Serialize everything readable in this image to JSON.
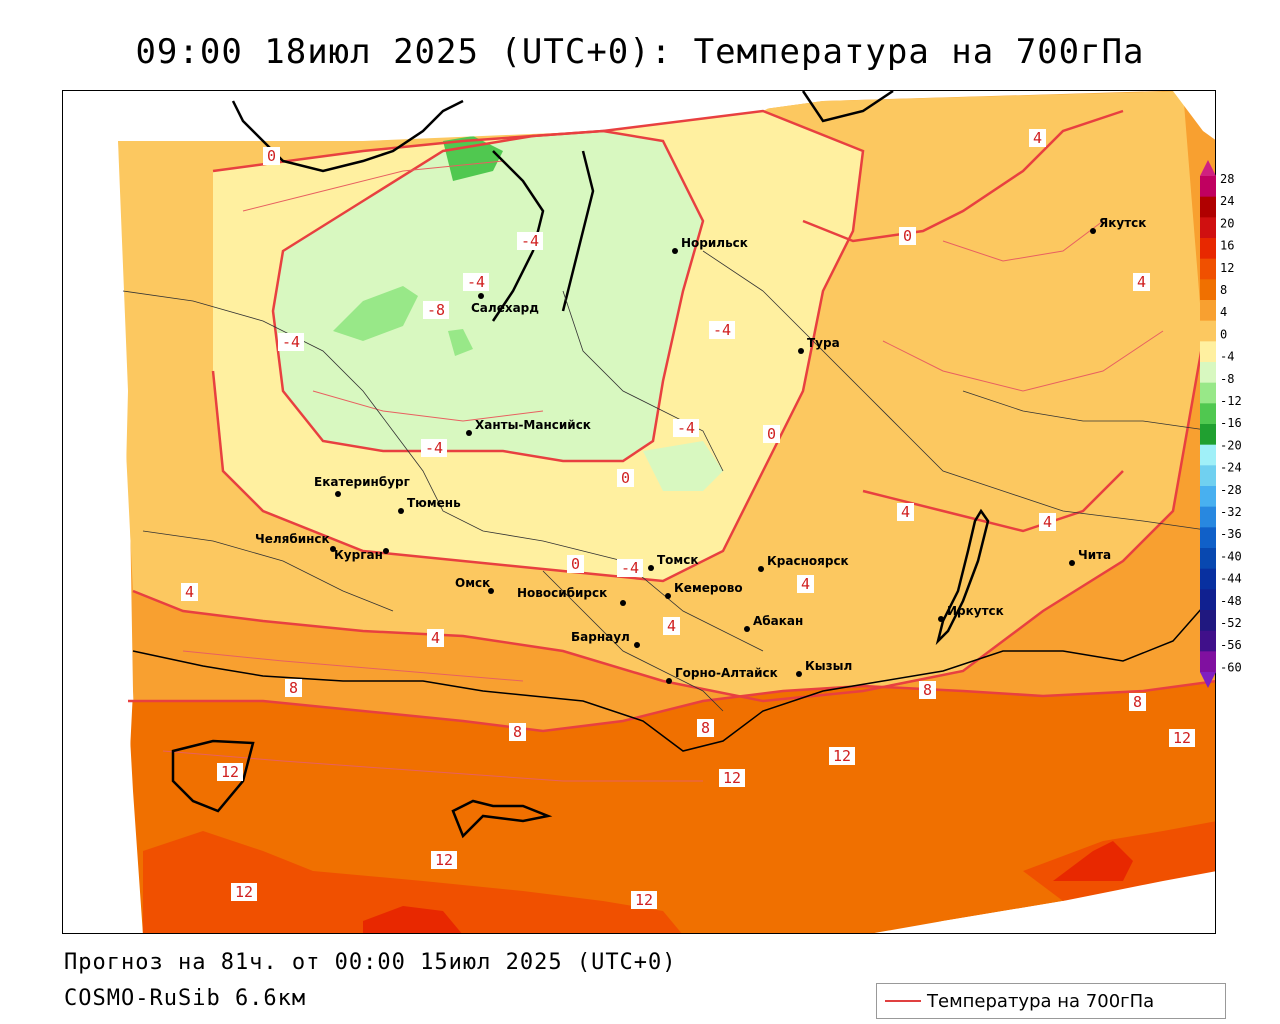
{
  "title": "09:00 18июл 2025 (UTC+0): Температура на 700гПа",
  "footer": {
    "forecast": "Прогноз на 81ч. от 00:00 15июл 2025 (UTC+0)",
    "model": "COSMO-RuSib 6.6км"
  },
  "legend": {
    "label": "Температура на 700гПа",
    "line_color": "#e04040"
  },
  "colorbar": {
    "ticks": [
      "28",
      "24",
      "20",
      "16",
      "12",
      "8",
      "4",
      "0",
      "-4",
      "-8",
      "-12",
      "-16",
      "-20",
      "-24",
      "-28",
      "-32",
      "-36",
      "-40",
      "-44",
      "-48",
      "-52",
      "-56",
      "-60"
    ],
    "colors": [
      "#c00060",
      "#b00000",
      "#d01010",
      "#e82800",
      "#f05000",
      "#f07000",
      "#f8a030",
      "#fcc860",
      "#fff0a0",
      "#d8f8c0",
      "#98e888",
      "#50c850",
      "#20a030",
      "#a0f0f8",
      "#70d0f0",
      "#48b0f0",
      "#2888e0",
      "#1060c8",
      "#0848b0",
      "#0830a0",
      "#102090",
      "#201880",
      "#40108a",
      "#8010a0"
    ],
    "arrow_top_color": "#d02080",
    "arrow_bottom_color": "#8020c0"
  },
  "cities": [
    {
      "name": "Норильск"
    },
    {
      "name": "Якутск"
    },
    {
      "name": "Салехард"
    },
    {
      "name": "Тура"
    },
    {
      "name": "Ханты-Мансийск"
    },
    {
      "name": "Екатеринбург"
    },
    {
      "name": "Тюмень"
    },
    {
      "name": "Челябинск"
    },
    {
      "name": "Курган"
    },
    {
      "name": "Омск"
    },
    {
      "name": "Новосибирск"
    },
    {
      "name": "Томск"
    },
    {
      "name": "Кемерово"
    },
    {
      "name": "Красноярск"
    },
    {
      "name": "Абакан"
    },
    {
      "name": "Барнаул"
    },
    {
      "name": "Горно-Алтайск"
    },
    {
      "name": "Кызыл"
    },
    {
      "name": "Иркутск"
    },
    {
      "name": "Чита"
    }
  ],
  "isolines": [
    "0",
    "4",
    "-4",
    "-8",
    "-4",
    "-4",
    "-4",
    "-4",
    "-4",
    "0",
    "0",
    "0",
    "4",
    "4",
    "4",
    "4",
    "4",
    "4",
    "4",
    "8",
    "8",
    "8",
    "8",
    "8",
    "12",
    "12",
    "12",
    "12",
    "12",
    "12",
    "12",
    "0",
    "-4"
  ],
  "field_colors": {
    "t_minus8": "#98e888",
    "t_minus4": "#d8f8c0",
    "t_0": "#fff0a0",
    "t_4": "#fcc860",
    "t_8": "#f8a030",
    "t_12": "#f07000",
    "t_16": "#f05000",
    "t_20": "#e82800"
  }
}
